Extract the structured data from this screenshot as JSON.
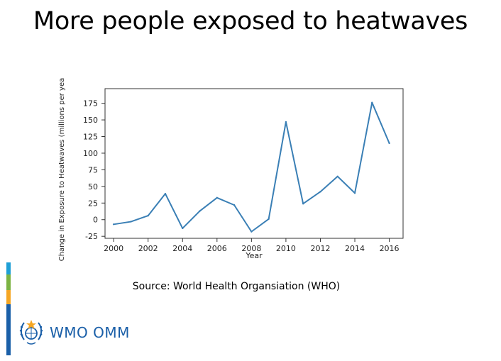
{
  "slide": {
    "title": "More people exposed to heatwaves",
    "source": "Source: World Health Organsiation (WHO)"
  },
  "logo": {
    "text": "WMO OMM",
    "icon": "wmo-emblem-icon",
    "color": "#1a5fa8"
  },
  "strip_colors": [
    "#1e9fd6",
    "#7cb342",
    "#f5a623",
    "#1a5fa8"
  ],
  "chart_data": {
    "type": "line",
    "title": "",
    "xlabel": "Year",
    "ylabel": "Change in Exposure to Heatwaves (millions per year)",
    "xlim": [
      1999.5,
      2016.8
    ],
    "ylim": [
      -28,
      197
    ],
    "xticks": [
      2000,
      2002,
      2004,
      2006,
      2008,
      2010,
      2012,
      2014,
      2016
    ],
    "yticks": [
      -25,
      0,
      25,
      50,
      75,
      100,
      125,
      150,
      175
    ],
    "grid": false,
    "line_color": "#3a7fb5",
    "x": [
      2000,
      2001,
      2002,
      2003,
      2004,
      2005,
      2006,
      2007,
      2008,
      2009,
      2010,
      2011,
      2012,
      2013,
      2014,
      2015,
      2016
    ],
    "series": [
      {
        "values": [
          -7,
          -3,
          6,
          39,
          -13,
          13,
          33,
          22,
          -18,
          1,
          147,
          24,
          42,
          65,
          40,
          176,
          115
        ]
      }
    ]
  }
}
